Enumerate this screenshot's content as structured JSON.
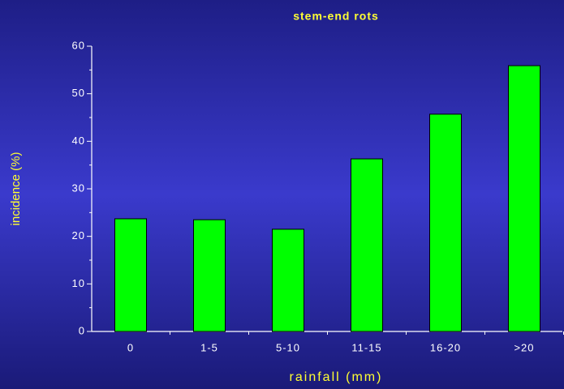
{
  "chart_data": {
    "type": "bar",
    "title": "stem-end rots",
    "xlabel": "rainfall (mm)",
    "ylabel": "incidence (%)",
    "categories": [
      "0",
      "1-5",
      "5-10",
      "11-15",
      "16-20",
      ">20"
    ],
    "values": [
      23.7,
      23.5,
      21.5,
      36.3,
      45.7,
      55.9
    ],
    "color": "#00ff00",
    "ylim": [
      0,
      60
    ],
    "yticks": [
      0,
      10,
      20,
      30,
      40,
      50,
      60
    ],
    "grid": false
  }
}
